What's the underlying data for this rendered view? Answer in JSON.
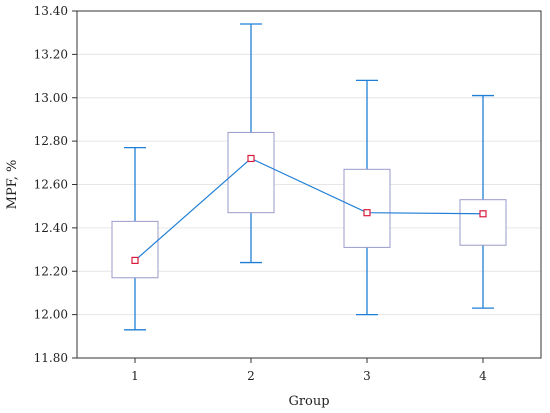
{
  "chart_data": {
    "type": "box",
    "title": "",
    "xlabel": "Group",
    "ylabel": "MPF, %",
    "categories": [
      "1",
      "2",
      "3",
      "4"
    ],
    "ylim": [
      11.8,
      13.4
    ],
    "yticks": [
      11.8,
      12.0,
      12.2,
      12.4,
      12.6,
      12.8,
      13.0,
      13.2,
      13.4
    ],
    "ytick_labels": [
      "11.80",
      "12.00",
      "12.20",
      "12.40",
      "12.60",
      "12.80",
      "13.00",
      "13.20",
      "13.40"
    ],
    "grid": true,
    "legend": "none",
    "boxes": [
      {
        "category": "1",
        "whisker_low": 11.93,
        "box_low": 12.17,
        "center": 12.25,
        "box_high": 12.43,
        "whisker_high": 12.77
      },
      {
        "category": "2",
        "whisker_low": 12.24,
        "box_low": 12.47,
        "center": 12.72,
        "box_high": 12.84,
        "whisker_high": 13.34
      },
      {
        "category": "3",
        "whisker_low": 12.0,
        "box_low": 12.31,
        "center": 12.47,
        "box_high": 12.67,
        "whisker_high": 13.08
      },
      {
        "category": "4",
        "whisker_low": 12.03,
        "box_low": 12.32,
        "center": 12.465,
        "box_high": 12.53,
        "whisker_high": 13.01
      }
    ],
    "colors": {
      "whisker": "#1f7fd6",
      "box": "#9a9acb",
      "center_marker": "#d81b3c",
      "center_line": "#1f7fd6",
      "grid": "#e6e6e6",
      "frame": "#333333"
    }
  }
}
